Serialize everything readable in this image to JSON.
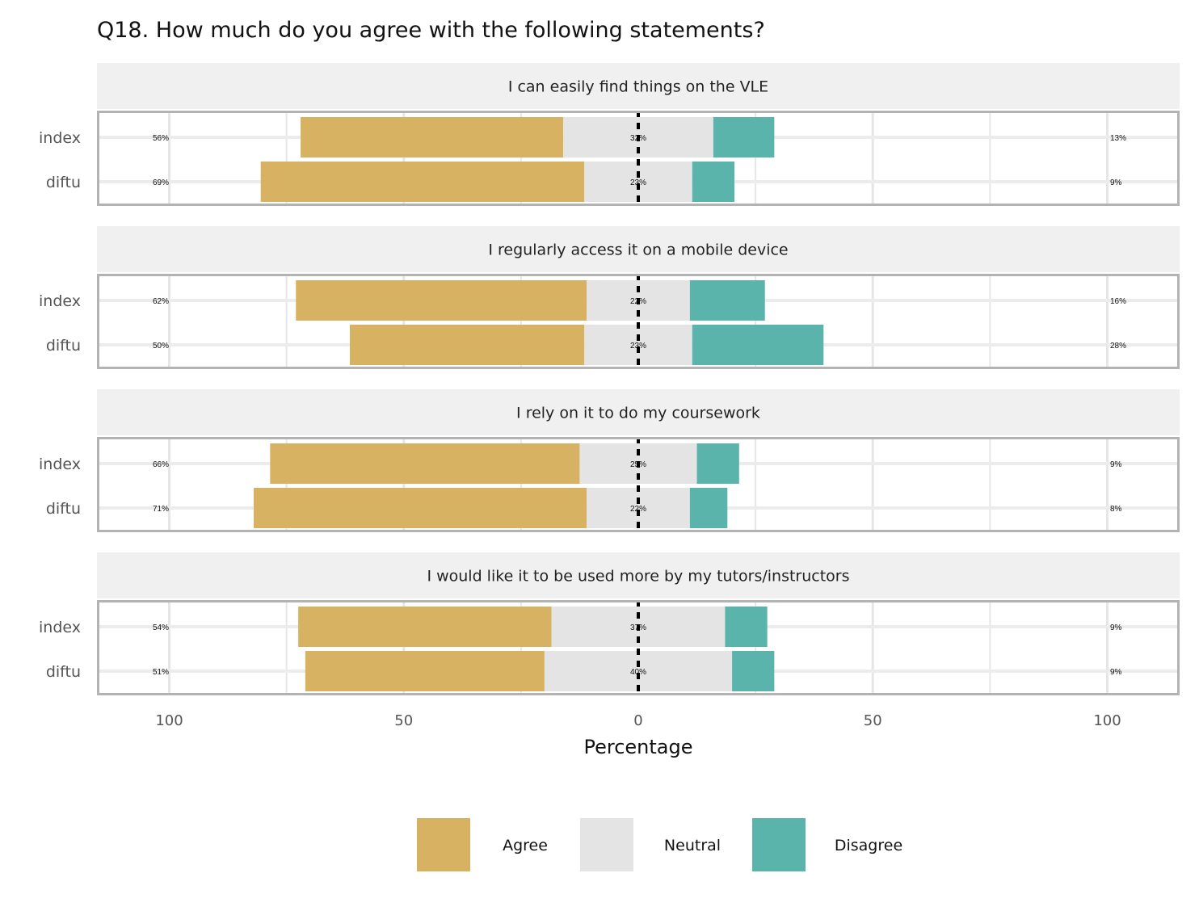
{
  "chart_data": {
    "type": "bar",
    "orientation": "horizontal-diverging",
    "title": "Q18. How much do you agree with the following statements?",
    "xlabel": "Percentage",
    "xlim": [
      -100,
      100
    ],
    "x_ticks": [
      {
        "value": -100,
        "label": "100"
      },
      {
        "value": -50,
        "label": "50"
      },
      {
        "value": 0,
        "label": "0"
      },
      {
        "value": 50,
        "label": "50"
      },
      {
        "value": 100,
        "label": "100"
      }
    ],
    "grid": true,
    "legend_position": "bottom",
    "categories_legend": [
      "Agree",
      "Neutral",
      "Disagree"
    ],
    "colors": {
      "Agree": "#d7b263",
      "Neutral": "#e4e4e4",
      "Disagree": "#5ab4ac"
    },
    "panels": [
      {
        "title": "I can easily find things on the VLE",
        "rows": [
          {
            "group": "index",
            "agree": 56,
            "neutral": 32,
            "disagree": 13,
            "agree_label": "56%",
            "neutral_label": "32%",
            "disagree_label": "13%"
          },
          {
            "group": "diftu",
            "agree": 69,
            "neutral": 23,
            "disagree": 9,
            "agree_label": "69%",
            "neutral_label": "23%",
            "disagree_label": "9%"
          }
        ]
      },
      {
        "title": "I regularly access it on a mobile device",
        "rows": [
          {
            "group": "index",
            "agree": 62,
            "neutral": 22,
            "disagree": 16,
            "agree_label": "62%",
            "neutral_label": "22%",
            "disagree_label": "16%"
          },
          {
            "group": "diftu",
            "agree": 50,
            "neutral": 23,
            "disagree": 28,
            "agree_label": "50%",
            "neutral_label": "23%",
            "disagree_label": "28%"
          }
        ]
      },
      {
        "title": "I rely on it to do my coursework",
        "rows": [
          {
            "group": "index",
            "agree": 66,
            "neutral": 25,
            "disagree": 9,
            "agree_label": "66%",
            "neutral_label": "25%",
            "disagree_label": "9%"
          },
          {
            "group": "diftu",
            "agree": 71,
            "neutral": 22,
            "disagree": 8,
            "agree_label": "71%",
            "neutral_label": "22%",
            "disagree_label": "8%"
          }
        ]
      },
      {
        "title": "I would like it to be used more by my tutors/instructors",
        "rows": [
          {
            "group": "index",
            "agree": 54,
            "neutral": 37,
            "disagree": 9,
            "agree_label": "54%",
            "neutral_label": "37%",
            "disagree_label": "9%"
          },
          {
            "group": "diftu",
            "agree": 51,
            "neutral": 40,
            "disagree": 9,
            "agree_label": "51%",
            "neutral_label": "40%",
            "disagree_label": "9%"
          }
        ]
      }
    ]
  }
}
